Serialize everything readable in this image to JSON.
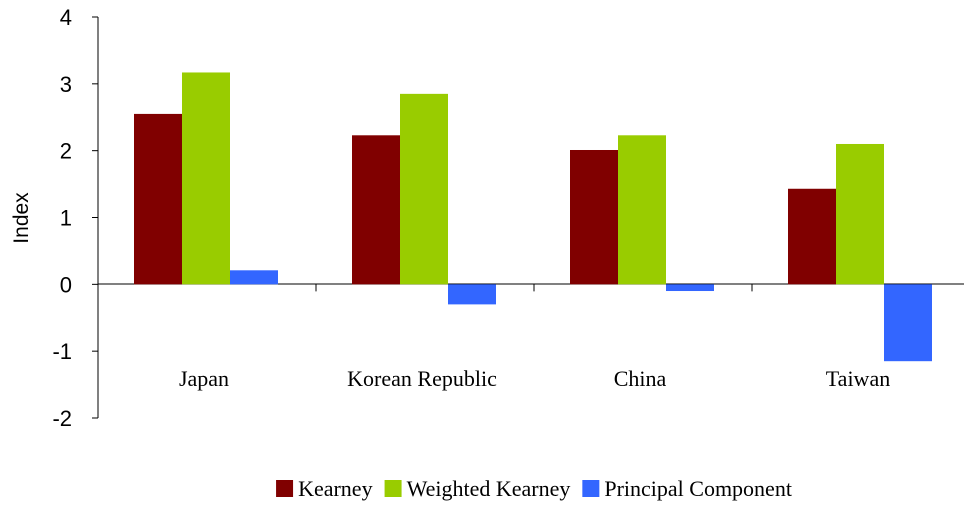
{
  "chart_data": {
    "type": "bar",
    "title": "",
    "xlabel": "",
    "ylabel": "Index",
    "ylim": [
      -2,
      4
    ],
    "yticks": [
      "4",
      "3",
      "2",
      "1",
      "0",
      "-1",
      "-2"
    ],
    "categories": [
      "Japan",
      "Korean Republic",
      "China",
      "Taiwan"
    ],
    "series": [
      {
        "name": "Kearney",
        "color": "#800000",
        "values": [
          2.55,
          2.23,
          2.01,
          1.43
        ]
      },
      {
        "name": "Weighted Kearney",
        "color": "#99CC00",
        "values": [
          3.17,
          2.85,
          2.23,
          2.1
        ]
      },
      {
        "name": "Principal Component",
        "color": "#3366FF",
        "values": [
          0.21,
          -0.3,
          -0.1,
          -1.15
        ]
      }
    ],
    "grid": false,
    "legend_position": "bottom"
  }
}
